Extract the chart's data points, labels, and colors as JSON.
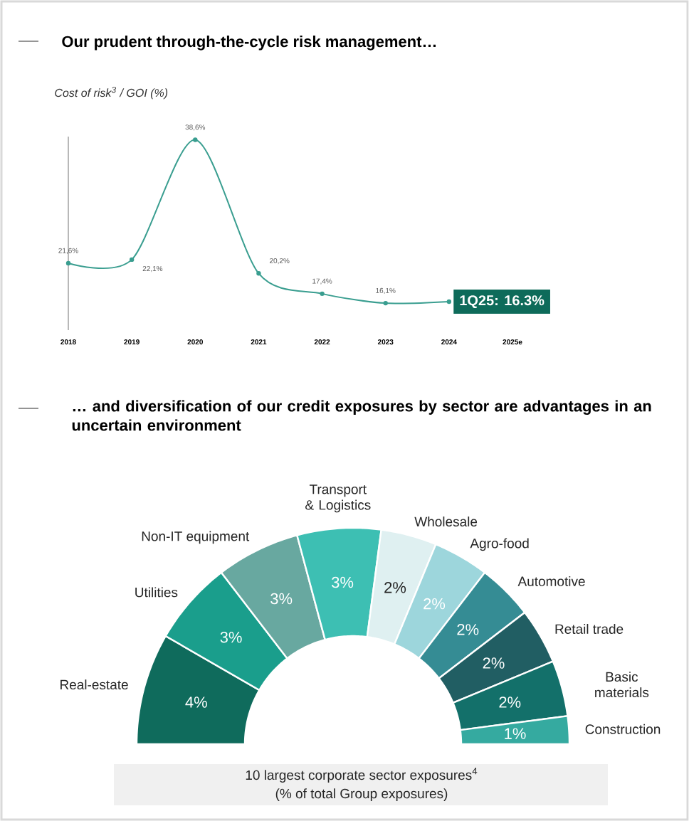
{
  "chart_data": [
    {
      "type": "line",
      "title": "Our prudent through-the-cycle risk management…",
      "ylabel": "Cost of risk$^{3}$ / GOI (%)",
      "categories": [
        "2018",
        "2019",
        "2020",
        "2021",
        "2022",
        "2023",
        "2024",
        "2025e"
      ],
      "values": [
        21.6,
        22.1,
        38.6,
        20.2,
        17.4,
        16.1,
        16.3,
        null
      ],
      "value_labels": [
        "21,6%",
        "22,1%",
        "38,6%",
        "20,2%",
        "17,4%",
        "16,1%",
        null,
        null
      ],
      "color": "#3a9e90",
      "marker": "circle",
      "annotations": [
        {
          "text": "1Q25: 16.3%",
          "x": "2024",
          "y": 16.3
        }
      ]
    },
    {
      "type": "donut",
      "title": "… and diversification of our credit exposures by sector are advantages in an uncertain environment",
      "categories": [
        "Real-estate",
        "Utilities",
        "Non-IT equipment",
        "Transport & Logistics",
        "Wholesale",
        "Agro-food",
        "Automotive",
        "Retail trade",
        "Basic materials",
        "Construction"
      ],
      "values": [
        4,
        3,
        3,
        3,
        2,
        2,
        2,
        2,
        2,
        1
      ],
      "value_labels": [
        "4%",
        "3%",
        "3%",
        "3%",
        "2%",
        "2%",
        "2%",
        "2%",
        "2%",
        "1%"
      ],
      "colors": [
        "#0f6b5c",
        "#1a9e8c",
        "#68a8a0",
        "#3dbfb3",
        "#dff0f1",
        "#9dd6dc",
        "#358c94",
        "#215e63",
        "#13706a",
        "#35aaa0"
      ],
      "annotations": [
        "10 largest corporate sector exposures$^{4}$",
        "(% of total Group exposures)"
      ]
    }
  ]
}
